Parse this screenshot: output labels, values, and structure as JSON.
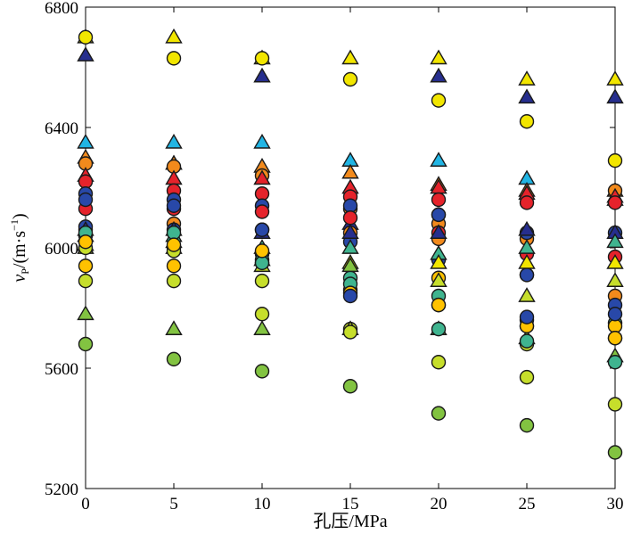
{
  "chart_data": {
    "type": "scatter",
    "title": "",
    "xlabel": "孔压/MPa",
    "ylabel": "vP/(m·s−1)",
    "ylabel_parts": {
      "main": "v",
      "sub": "P",
      "unit_open": "/(m·s",
      "sup": "−1",
      "unit_close": ")"
    },
    "xlim": [
      0,
      30
    ],
    "ylim": [
      5200,
      6800
    ],
    "x_ticks": [
      0,
      5,
      10,
      15,
      20,
      25,
      30
    ],
    "y_ticks": [
      5200,
      5600,
      6000,
      6400,
      6800
    ],
    "legend": "none",
    "colors": {
      "yellow": "#f2e600",
      "gold": "#ffc200",
      "lime": "#c6de2b",
      "green": "#82c341",
      "teal": "#3fb48f",
      "cyan": "#21b5e4",
      "blue": "#2848a8",
      "navy": "#262e8e",
      "orange": "#f28a1c",
      "red": "#e5232b"
    },
    "series": [
      {
        "name": "T-yellow",
        "marker": "triangle",
        "color": "yellow",
        "x": [
          0,
          5,
          10,
          15,
          20,
          25,
          30
        ],
        "y": [
          6700,
          6700,
          6630,
          6630,
          6630,
          6560,
          6560
        ]
      },
      {
        "name": "C-yellow",
        "marker": "circle",
        "color": "yellow",
        "x": [
          0,
          5,
          10,
          15,
          20,
          25,
          30
        ],
        "y": [
          6700,
          6630,
          6630,
          6560,
          6490,
          6420,
          6290
        ]
      },
      {
        "name": "T-navy",
        "marker": "triangle",
        "color": "navy",
        "x": [
          0,
          5,
          10,
          15,
          20,
          25,
          30
        ],
        "y": [
          6640,
          6280,
          6570,
          6080,
          6570,
          6500,
          6500
        ]
      },
      {
        "name": "T-cyan",
        "marker": "triangle",
        "color": "cyan",
        "x": [
          0,
          5,
          10,
          15,
          20,
          25,
          30
        ],
        "y": [
          6350,
          6350,
          6350,
          6290,
          6290,
          6230,
          6160
        ]
      },
      {
        "name": "T-orange",
        "marker": "triangle",
        "color": "orange",
        "x": [
          0,
          5,
          10,
          15,
          20,
          25,
          30
        ],
        "y": [
          6300,
          6280,
          6270,
          6250,
          6210,
          6190,
          6190
        ]
      },
      {
        "name": "C-orange",
        "marker": "circle",
        "color": "orange",
        "x": [
          0,
          5,
          10,
          15,
          20,
          25,
          30
        ],
        "y": [
          6280,
          6270,
          6240,
          6130,
          6080,
          6030,
          6190
        ]
      },
      {
        "name": "T-red",
        "marker": "triangle",
        "color": "red",
        "x": [
          0,
          5,
          10,
          15,
          20,
          25,
          30
        ],
        "y": [
          6240,
          6230,
          6230,
          6200,
          6200,
          6180,
          6170
        ]
      },
      {
        "name": "C-red",
        "marker": "circle",
        "color": "red",
        "x": [
          0,
          5,
          10,
          15,
          20,
          25,
          30
        ],
        "y": [
          6220,
          6190,
          6180,
          6170,
          6160,
          6150,
          6150
        ]
      },
      {
        "name": "C-blue",
        "marker": "circle",
        "color": "blue",
        "x": [
          0,
          5,
          10,
          15,
          20,
          25,
          30
        ],
        "y": [
          6180,
          6160,
          6140,
          6140,
          6110,
          6050,
          6050
        ]
      },
      {
        "name": "C-red-2",
        "marker": "circle",
        "color": "red",
        "x": [
          0,
          5,
          10,
          15,
          20,
          25,
          30
        ],
        "y": [
          6130,
          6130,
          6120,
          6100,
          6050,
          5980,
          5970
        ]
      },
      {
        "name": "C-orange-2",
        "marker": "circle",
        "color": "orange",
        "x": [
          0,
          5,
          10,
          15,
          20,
          25,
          30
        ],
        "y": [
          6060,
          6080,
          6060,
          6050,
          6030,
          5910,
          5840
        ]
      },
      {
        "name": "C-blue-2",
        "marker": "circle",
        "color": "blue",
        "x": [
          0,
          5,
          10,
          15,
          20,
          25,
          30
        ],
        "y": [
          6070,
          6060,
          5980,
          6020,
          5960,
          5910,
          5810
        ]
      },
      {
        "name": "T-navy-2",
        "marker": "triangle",
        "color": "navy",
        "x": [
          0,
          5,
          10,
          15,
          20,
          25,
          30
        ],
        "y": [
          6060,
          6060,
          6050,
          6050,
          6050,
          6060,
          6050
        ]
      },
      {
        "name": "T-teal",
        "marker": "triangle",
        "color": "teal",
        "x": [
          0,
          5,
          10,
          15,
          20,
          25,
          30
        ],
        "y": [
          6040,
          6040,
          6000,
          6000,
          5980,
          6000,
          6020
        ]
      },
      {
        "name": "C-teal",
        "marker": "circle",
        "color": "teal",
        "x": [
          0,
          5,
          10,
          15,
          20,
          25,
          30
        ],
        "y": [
          6040,
          6000,
          5960,
          5900,
          5840,
          5760,
          5750
        ]
      },
      {
        "name": "T-yellow-2",
        "marker": "triangle",
        "color": "yellow",
        "x": [
          0,
          5,
          10,
          15,
          20,
          25,
          30
        ],
        "y": [
          6010,
          6020,
          5960,
          5950,
          5950,
          5950,
          5950
        ]
      },
      {
        "name": "C-gold",
        "marker": "circle",
        "color": "gold",
        "x": [
          0,
          5,
          10,
          15,
          20,
          25,
          30
        ],
        "y": [
          5940,
          5940,
          5950,
          5860,
          5900,
          5740,
          5740
        ]
      },
      {
        "name": "C-lime",
        "marker": "circle",
        "color": "lime",
        "x": [
          0,
          5,
          10,
          15,
          20,
          25,
          30
        ],
        "y": [
          5890,
          5890,
          5890,
          5730,
          5810,
          5680,
          5700
        ]
      },
      {
        "name": "T-lime",
        "marker": "triangle",
        "color": "lime",
        "x": [
          0,
          5,
          10,
          15,
          20,
          25,
          30
        ],
        "y": [
          6000,
          6000,
          5940,
          5730,
          5890,
          5840,
          5890
        ]
      },
      {
        "name": "T-green",
        "marker": "triangle",
        "color": "green",
        "x": [
          0,
          5,
          10,
          15,
          20,
          25,
          30
        ],
        "y": [
          5780,
          5730,
          5730,
          5940,
          5730,
          5700,
          5640
        ]
      },
      {
        "name": "C-green",
        "marker": "circle",
        "color": "green",
        "x": [
          0,
          5,
          10,
          15,
          20,
          25,
          30
        ],
        "y": [
          5680,
          5630,
          5590,
          5540,
          5450,
          5410,
          5320
        ]
      },
      {
        "name": "C-lime-2",
        "marker": "circle",
        "color": "lime",
        "x": [
          0,
          5,
          10,
          15,
          20,
          25,
          30
        ],
        "y": [
          6000,
          5990,
          5780,
          5720,
          5620,
          5570,
          5480
        ]
      },
      {
        "name": "C-teal-2",
        "marker": "circle",
        "color": "teal",
        "x": [
          0,
          5,
          10,
          15,
          20,
          25,
          30
        ],
        "y": [
          6050,
          6050,
          5950,
          5880,
          5730,
          5690,
          5620
        ]
      },
      {
        "name": "C-gold-2",
        "marker": "circle",
        "color": "gold",
        "x": [
          0,
          5,
          10,
          15,
          20,
          25,
          30
        ],
        "y": [
          6020,
          6010,
          5990,
          5850,
          5810,
          5740,
          5700
        ]
      },
      {
        "name": "C-blue-3",
        "marker": "circle",
        "color": "blue",
        "x": [
          0,
          5,
          10,
          15,
          20,
          25,
          30
        ],
        "y": [
          6160,
          6140,
          6060,
          5840,
          6110,
          5770,
          5780
        ]
      }
    ]
  }
}
